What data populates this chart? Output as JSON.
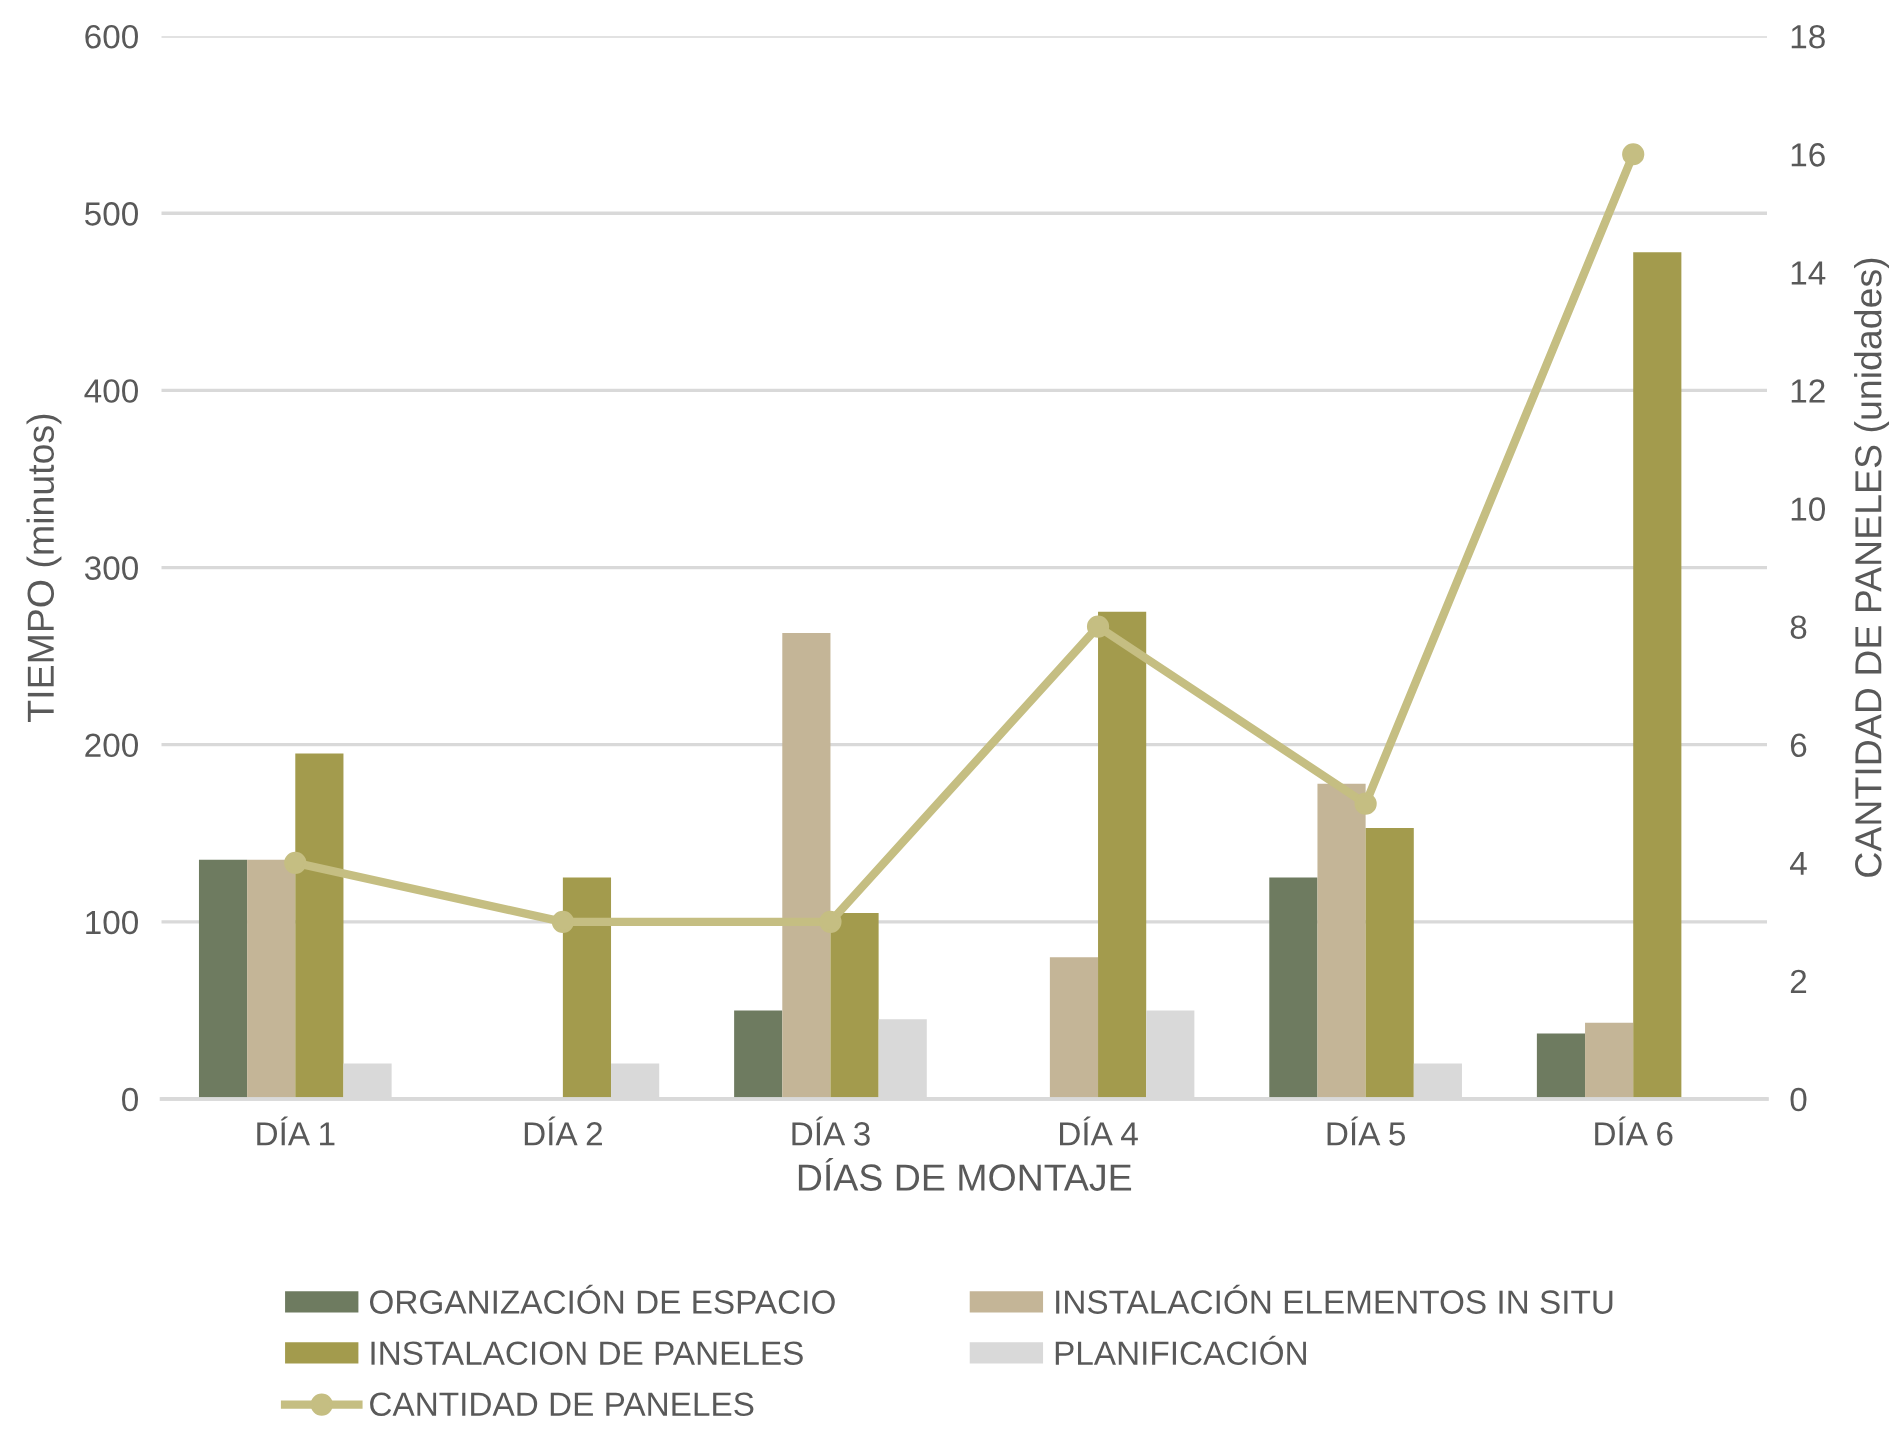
{
  "chart_data": {
    "type": "bar",
    "categories": [
      "DÍA 1",
      "DÍA 2",
      "DÍA 3",
      "DÍA 4",
      "DÍA 5",
      "DÍA 6"
    ],
    "series": [
      {
        "name": "ORGANIZACIÓN DE ESPACIO",
        "color": "#6e7b60",
        "values": [
          135,
          null,
          50,
          null,
          125,
          37
        ]
      },
      {
        "name": "INSTALACIÓN ELEMENTOS IN SITU",
        "color": "#c4b597",
        "values": [
          135,
          null,
          263,
          80,
          178,
          43
        ]
      },
      {
        "name": "INSTALACION DE PANELES",
        "color": "#a39b4d",
        "values": [
          195,
          125,
          105,
          275,
          153,
          478
        ]
      },
      {
        "name": "PLANIFICACIÓN",
        "color": "#d9d9d9",
        "values": [
          20,
          20,
          45,
          50,
          20,
          null
        ]
      },
      {
        "name": "CANTIDAD DE PANELES",
        "type": "line",
        "axis": "y2",
        "color": "#c5be82",
        "marker": "circle",
        "line_style": "solid",
        "values": [
          4,
          3,
          3,
          8,
          5,
          16
        ]
      }
    ],
    "xlabel": "DÍAS DE MONTAJE",
    "ylabel": "TIEMPO (minutos)",
    "y2label": "CANTIDAD DE PANELES (unidades)",
    "ylim": [
      0,
      600
    ],
    "yticks": [
      0,
      100,
      200,
      300,
      400,
      500,
      600
    ],
    "y2lim": [
      0,
      18
    ],
    "y2ticks": [
      0,
      2,
      4,
      6,
      8,
      10,
      12,
      14,
      16,
      18
    ],
    "grid": "y",
    "legend": "bottom"
  }
}
